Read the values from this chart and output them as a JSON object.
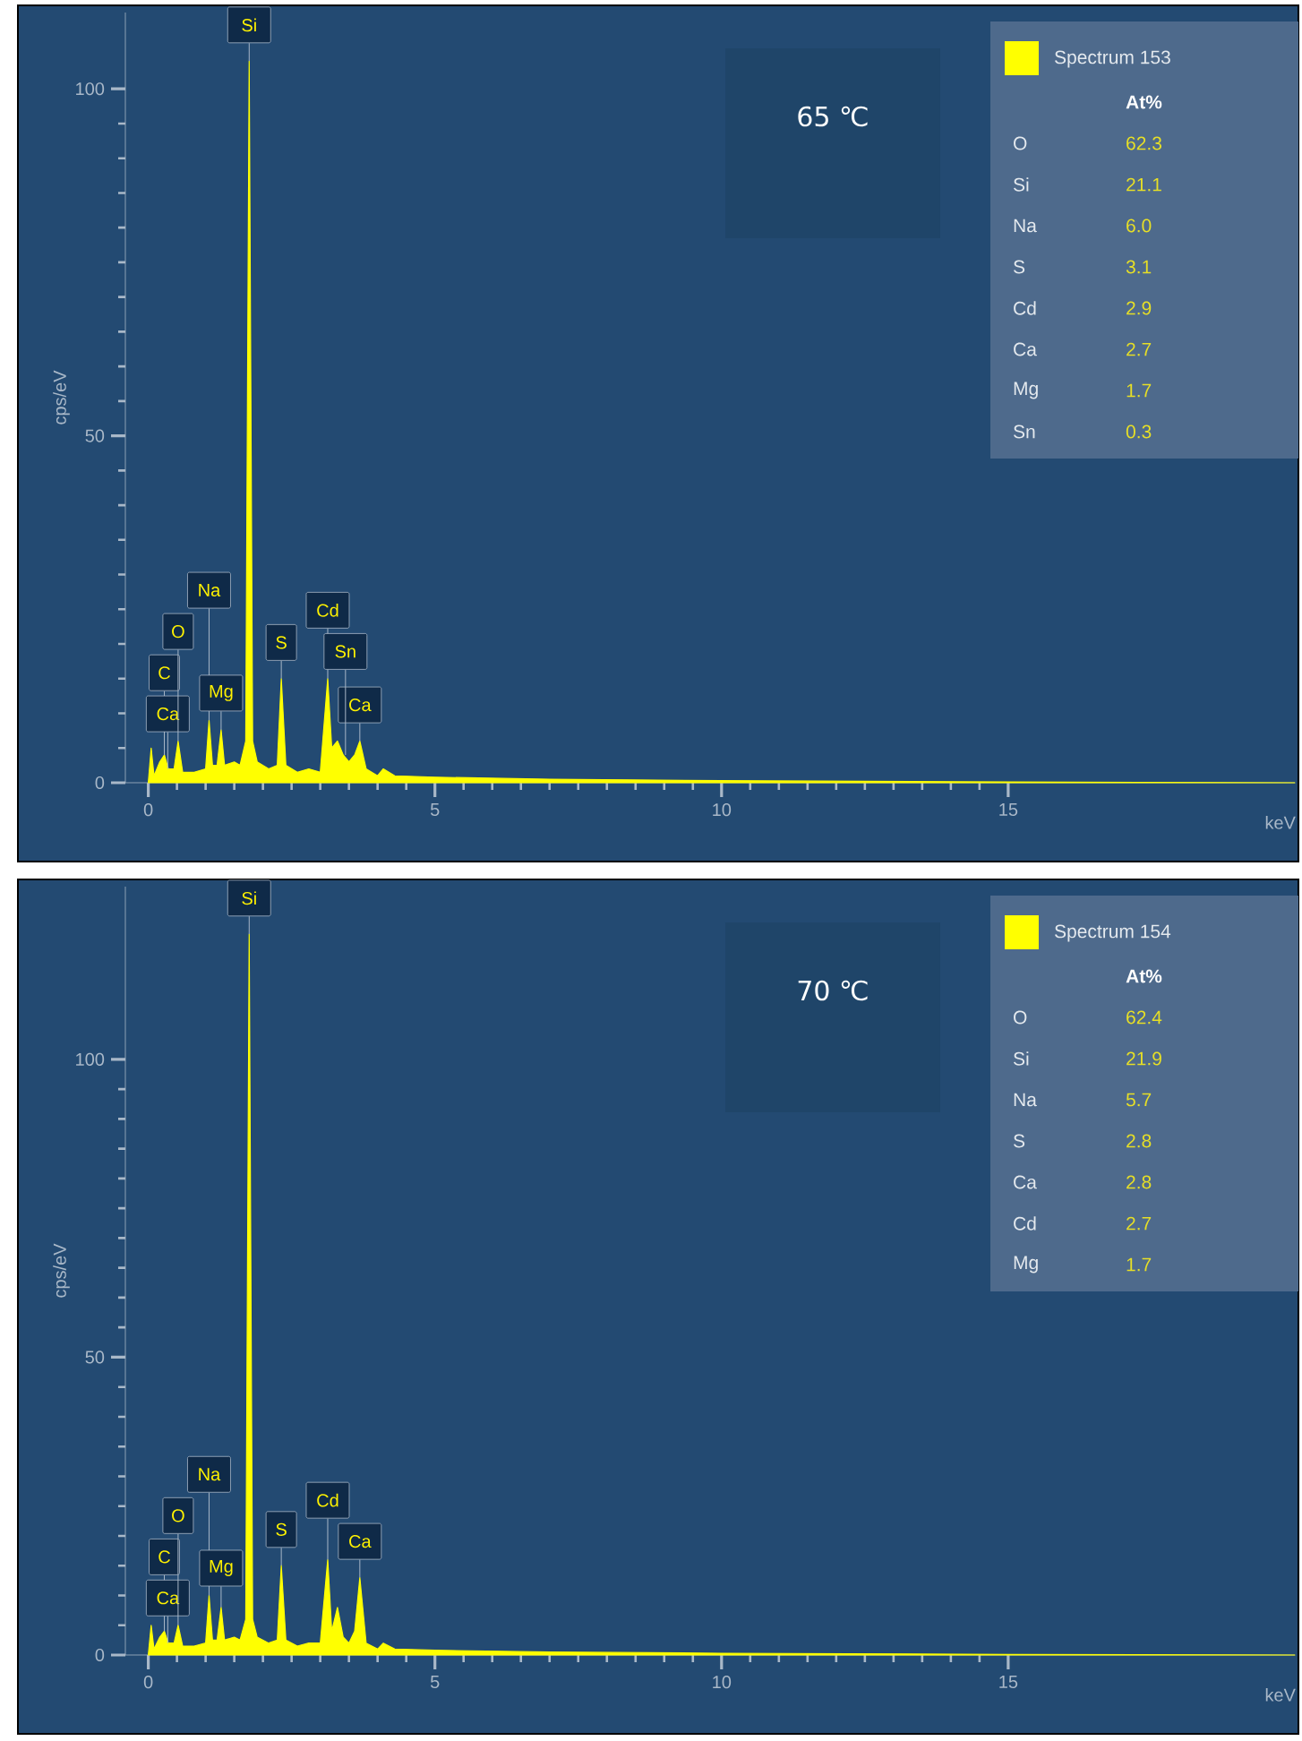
{
  "chart_data": [
    {
      "type": "area",
      "title": "65 ℃",
      "xlabel": "keV",
      "ylabel": "cps/eV",
      "xlim": [
        -0.4,
        20
      ],
      "ylim": [
        0,
        111
      ],
      "xticks": [
        0,
        5,
        10,
        15
      ],
      "yticks": [
        0,
        50,
        100
      ],
      "legend": "top right",
      "series": [
        {
          "name": "Spectrum 153",
          "color": "#ffff00",
          "x": [
            0,
            0.05,
            0.1,
            0.2,
            0.28,
            0.35,
            0.45,
            0.52,
            0.6,
            0.8,
            1.0,
            1.06,
            1.12,
            1.2,
            1.27,
            1.33,
            1.5,
            1.6,
            1.7,
            1.76,
            1.82,
            1.9,
            2.1,
            2.25,
            2.32,
            2.4,
            2.6,
            2.8,
            3.0,
            3.13,
            3.2,
            3.3,
            3.4,
            3.5,
            3.6,
            3.69,
            3.8,
            4.0,
            4.1,
            4.3,
            5,
            7,
            10,
            15,
            20
          ],
          "values": [
            0,
            5,
            1,
            3,
            4,
            2,
            2,
            6,
            1.5,
            1.5,
            2,
            9,
            2.5,
            2.5,
            7.6,
            2.5,
            3,
            2.5,
            6,
            104,
            6,
            3,
            2,
            2.5,
            15,
            2.5,
            1.5,
            2,
            1.5,
            15,
            5,
            6,
            4,
            3,
            4,
            6,
            2,
            1,
            2,
            1,
            0.8,
            0.5,
            0.3,
            0.1,
            0
          ]
        }
      ],
      "annotations": [
        {
          "text": "Si",
          "x": 1.76,
          "y": 104
        },
        {
          "text": "C",
          "x": 0.28,
          "y": 4
        },
        {
          "text": "Ca",
          "x": 0.34,
          "y": 2
        },
        {
          "text": "O",
          "x": 0.52,
          "y": 6
        },
        {
          "text": "Na",
          "x": 1.06,
          "y": 9
        },
        {
          "text": "Mg",
          "x": 1.27,
          "y": 7.6
        },
        {
          "text": "S",
          "x": 2.32,
          "y": 15
        },
        {
          "text": "Cd",
          "x": 3.13,
          "y": 15
        },
        {
          "text": "Ca",
          "x": 3.69,
          "y": 6
        },
        {
          "text": "Sn",
          "x": 3.44,
          "y": 4
        },
        "At%",
        "O",
        "62.3",
        "Si",
        "21.1",
        "Na",
        "6.0",
        "S",
        "3.1",
        "Cd",
        "2.9",
        "Ca",
        "2.7",
        "Mg",
        "1.7",
        "Sn",
        "0.3"
      ]
    },
    {
      "type": "area",
      "title": "70 ℃",
      "xlabel": "keV",
      "ylabel": "cps/eV",
      "xlim": [
        -0.4,
        20
      ],
      "ylim": [
        0,
        129
      ],
      "xticks": [
        0,
        5,
        10,
        15
      ],
      "yticks": [
        0,
        50,
        100
      ],
      "legend": "top right",
      "series": [
        {
          "name": "Spectrum 154",
          "color": "#ffff00",
          "x": [
            0,
            0.05,
            0.1,
            0.2,
            0.28,
            0.35,
            0.45,
            0.52,
            0.6,
            0.8,
            1.0,
            1.06,
            1.12,
            1.2,
            1.27,
            1.33,
            1.5,
            1.6,
            1.7,
            1.76,
            1.82,
            1.9,
            2.1,
            2.25,
            2.32,
            2.4,
            2.6,
            2.8,
            3.0,
            3.13,
            3.2,
            3.3,
            3.4,
            3.5,
            3.6,
            3.69,
            3.8,
            4.0,
            4.1,
            4.3,
            5,
            7,
            10,
            15,
            20
          ],
          "values": [
            0,
            5,
            1,
            3,
            4,
            2,
            2,
            5,
            1.5,
            1.5,
            2,
            10,
            2.5,
            2.5,
            8,
            2.5,
            3,
            2.5,
            6,
            121,
            6,
            3,
            2,
            2.5,
            15,
            2.5,
            1.5,
            2,
            2,
            16,
            4,
            8,
            3,
            2,
            4,
            13,
            2,
            1,
            2,
            1,
            0.8,
            0.5,
            0.3,
            0.1,
            0
          ]
        }
      ],
      "annotations": [
        {
          "text": "Si",
          "x": 1.76,
          "y": 121
        },
        {
          "text": "C",
          "x": 0.28,
          "y": 4
        },
        {
          "text": "Ca",
          "x": 0.34,
          "y": 2
        },
        {
          "text": "O",
          "x": 0.52,
          "y": 5
        },
        {
          "text": "Na",
          "x": 1.06,
          "y": 10
        },
        {
          "text": "Mg",
          "x": 1.27,
          "y": 8
        },
        {
          "text": "S",
          "x": 2.32,
          "y": 15
        },
        {
          "text": "Cd",
          "x": 3.13,
          "y": 16
        },
        {
          "text": "Ca",
          "x": 3.69,
          "y": 13
        },
        "At%",
        "O",
        "62.4",
        "Si",
        "21.9",
        "Na",
        "5.7",
        "S",
        "2.8",
        "Ca",
        "2.8",
        "Cd",
        "2.7",
        "Mg",
        "1.7"
      ]
    }
  ]
}
